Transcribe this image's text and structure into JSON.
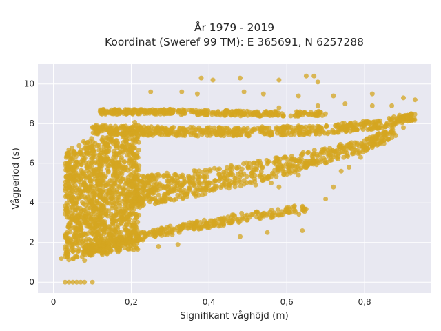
{
  "chart_data": {
    "type": "scatter",
    "title_line1": "År 1979 - 2019",
    "title_line2": "Koordinat (Sweref 99 TM): E 365691, N 6257288",
    "xlabel": "Signifikant våghöjd (m)",
    "ylabel": "Vågperiod (s)",
    "xlim": [
      -0.04,
      0.97
    ],
    "ylim": [
      -0.55,
      11.0
    ],
    "x_ticks": [
      0,
      0.2,
      0.4,
      0.6,
      0.8
    ],
    "x_tick_labels": [
      "0",
      "0,2",
      "0,4",
      "0,6",
      "0,8"
    ],
    "y_ticks": [
      0,
      2,
      4,
      6,
      8,
      10
    ],
    "y_tick_labels": [
      "0",
      "2",
      "4",
      "6",
      "8",
      "10"
    ],
    "grid": true,
    "colors": {
      "marker": "#d4a520",
      "plot_background": "#e8e8f1",
      "grid": "#ffffff",
      "text": "#2a2a2a"
    },
    "regions": [
      {
        "name": "main_mass",
        "x_range": [
          0.03,
          0.22
        ],
        "y_range": [
          1.1,
          8.1
        ]
      },
      {
        "name": "upper_band",
        "x": [
          0.1,
          0.3,
          0.5,
          0.7,
          0.85,
          0.93
        ],
        "y_center": [
          7.7,
          7.6,
          7.6,
          7.7,
          8.0,
          8.4
        ]
      },
      {
        "name": "lower_band",
        "x": [
          0.08,
          0.2,
          0.35,
          0.5,
          0.65
        ],
        "y_center": [
          1.6,
          2.2,
          2.8,
          3.3,
          3.7
        ]
      },
      {
        "name": "top_band",
        "x": [
          0.12,
          0.3,
          0.5,
          0.7
        ],
        "y_center": [
          8.6,
          8.6,
          8.5,
          8.5
        ]
      },
      {
        "name": "middle_fan",
        "x": [
          0.2,
          0.4,
          0.6,
          0.8,
          0.88
        ],
        "y_center": [
          4.5,
          5.1,
          5.9,
          6.9,
          7.6
        ]
      }
    ],
    "points": [
      [
        0.03,
        0.0
      ],
      [
        0.04,
        0.0
      ],
      [
        0.05,
        0.0
      ],
      [
        0.06,
        0.0
      ],
      [
        0.07,
        0.0
      ],
      [
        0.08,
        0.0
      ],
      [
        0.1,
        0.0
      ],
      [
        0.02,
        1.2
      ],
      [
        0.03,
        1.3
      ],
      [
        0.05,
        1.2
      ],
      [
        0.08,
        1.1
      ],
      [
        0.38,
        10.3
      ],
      [
        0.41,
        10.2
      ],
      [
        0.48,
        10.3
      ],
      [
        0.58,
        10.2
      ],
      [
        0.65,
        10.4
      ],
      [
        0.67,
        10.4
      ],
      [
        0.68,
        10.1
      ],
      [
        0.49,
        9.6
      ],
      [
        0.54,
        9.5
      ],
      [
        0.37,
        9.5
      ],
      [
        0.33,
        9.6
      ],
      [
        0.25,
        9.6
      ],
      [
        0.63,
        9.4
      ],
      [
        0.72,
        9.4
      ],
      [
        0.82,
        9.5
      ],
      [
        0.63,
        5.4
      ],
      [
        0.74,
        5.6
      ],
      [
        0.7,
        6.0
      ],
      [
        0.66,
        6.1
      ],
      [
        0.56,
        5.0
      ],
      [
        0.52,
        4.9
      ],
      [
        0.58,
        4.8
      ],
      [
        0.7,
        4.2
      ],
      [
        0.72,
        4.8
      ],
      [
        0.76,
        5.8
      ],
      [
        0.79,
        6.3
      ],
      [
        0.82,
        6.8
      ],
      [
        0.85,
        7.0
      ],
      [
        0.88,
        7.4
      ],
      [
        0.9,
        7.8
      ],
      [
        0.92,
        8.5
      ],
      [
        0.93,
        9.2
      ],
      [
        0.9,
        9.3
      ],
      [
        0.75,
        9.0
      ],
      [
        0.82,
        8.9
      ],
      [
        0.87,
        8.9
      ],
      [
        0.68,
        8.9
      ],
      [
        0.58,
        8.8
      ],
      [
        0.48,
        2.3
      ],
      [
        0.55,
        2.5
      ],
      [
        0.64,
        2.6
      ],
      [
        0.32,
        1.9
      ],
      [
        0.27,
        1.8
      ]
    ]
  }
}
